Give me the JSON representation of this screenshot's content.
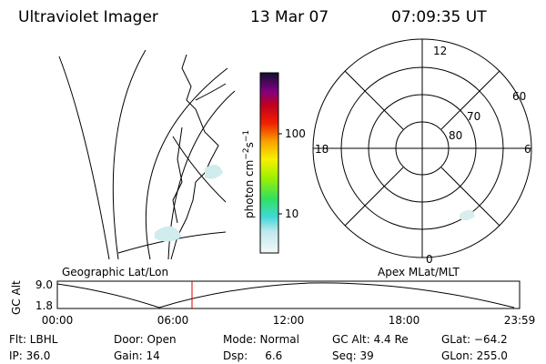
{
  "header": {
    "title": "Ultraviolet Imager",
    "date": "13 Mar 07",
    "time": "07:09:35 UT"
  },
  "map": {
    "label": "Geographic Lat/Lon"
  },
  "colorbar": {
    "label": [
      "photon cm",
      "−2",
      "s",
      "−1"
    ],
    "ticks": [
      "100",
      "10"
    ]
  },
  "polar": {
    "label": "Apex MLat/MLT",
    "mlt_labels": [
      "12",
      "6",
      "18",
      "0"
    ],
    "lat_labels": [
      "60",
      "70",
      "80"
    ]
  },
  "timeline": {
    "axis_label": "GC Alt",
    "y_labels": [
      "9.0",
      "1.8"
    ],
    "x_labels": [
      "00:00",
      "06:00",
      "12:00",
      "18:00",
      "23:59"
    ]
  },
  "footer": {
    "rows": [
      [
        "Flt: LBHL",
        "Door: Open",
        "Mode: Normal",
        "GC Alt: 4.4 Re",
        "GLat: −64.2"
      ],
      [
        "IP: 36.0",
        "Gain: 14",
        "Dsp:     6.6",
        "Seq: 39",
        "GLon: 255.0"
      ]
    ]
  }
}
